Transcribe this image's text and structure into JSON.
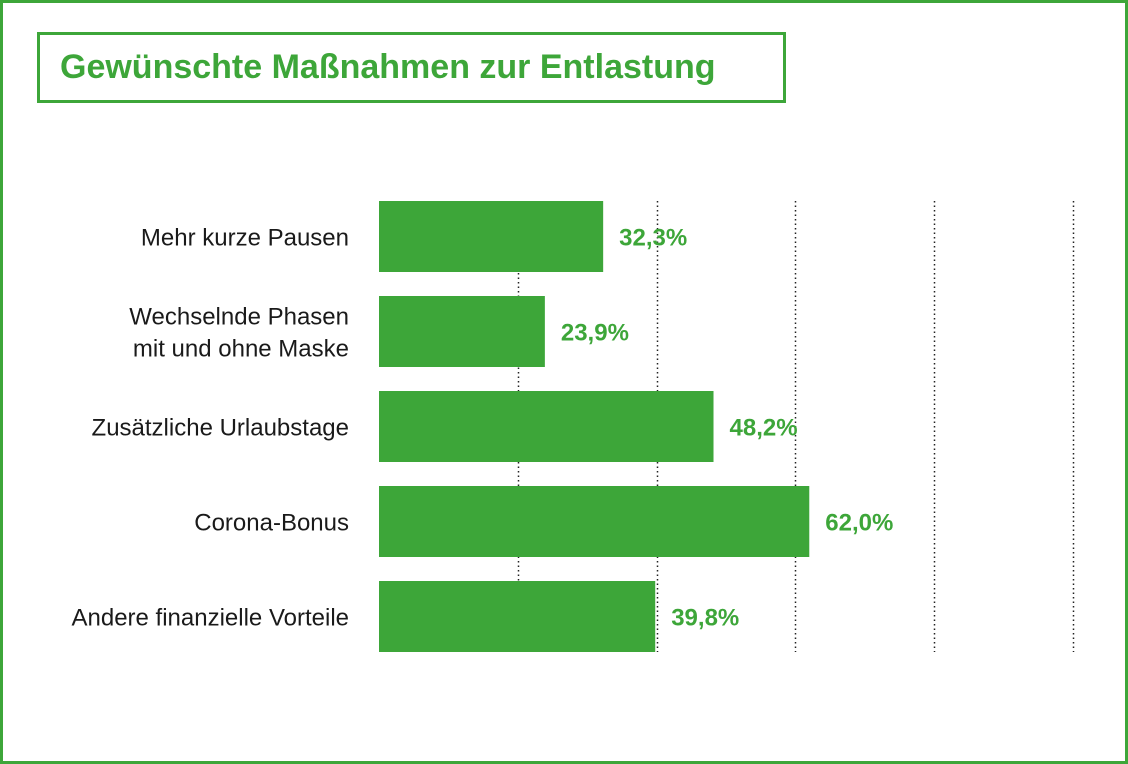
{
  "title": "Gewünschte Maßnahmen zur Entlastung",
  "colors": {
    "accent": "#3da639",
    "label_text": "#1a1a1a",
    "gridline": "#222222",
    "background": "#ffffff"
  },
  "chart_data": {
    "type": "bar",
    "orientation": "horizontal",
    "title": "Gewünschte Maßnahmen zur Entlastung",
    "categories": [
      [
        "Mehr kurze Pausen"
      ],
      [
        "Wechselnde Phasen",
        "mit und ohne Maske"
      ],
      [
        "Zusätzliche Urlaubstage"
      ],
      [
        "Corona-Bonus"
      ],
      [
        "Andere finanzielle Vorteile"
      ]
    ],
    "values": [
      32.3,
      23.9,
      48.2,
      62.0,
      39.8
    ],
    "value_labels": [
      "32,3%",
      "23,9%",
      "48,2%",
      "62,0%",
      "39,8%"
    ],
    "unit": "%",
    "xlim": [
      0,
      100
    ],
    "gridlines": [
      20,
      40,
      60,
      80,
      100
    ],
    "grid_style": "dotted",
    "legend": "none"
  }
}
